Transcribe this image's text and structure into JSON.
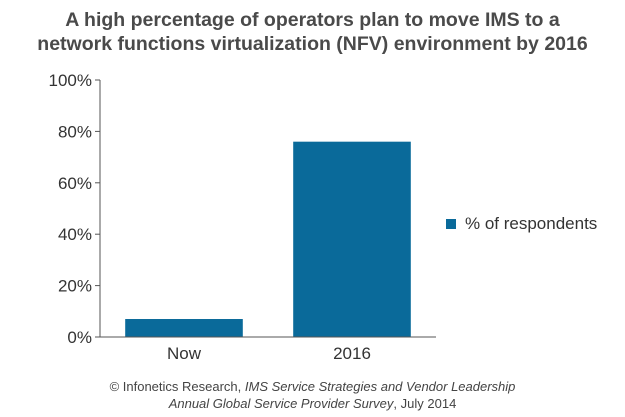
{
  "chart_data": {
    "type": "bar",
    "title_line1": "A high percentage of operators plan to move IMS to a",
    "title_line2": "network functions virtualization (NFV) environment by 2016",
    "categories": [
      "Now",
      "2016"
    ],
    "series": [
      {
        "name": "% of respondents",
        "values": [
          7,
          76
        ]
      }
    ],
    "ylim": [
      0,
      100
    ],
    "yticks": [
      0,
      20,
      40,
      60,
      80,
      100
    ],
    "ytick_labels": [
      "0%",
      "20%",
      "40%",
      "60%",
      "80%",
      "100%"
    ],
    "grid": false,
    "legend_position": "right",
    "bar_color": "#0a6a9a"
  },
  "footer": {
    "line1_prefix": "© Infonetics Research, ",
    "line1_italic": "IMS Service Strategies and Vendor Leadership",
    "line2_italic": "Annual Global Service Provider Survey",
    "line2_suffix": ", July 2014"
  }
}
